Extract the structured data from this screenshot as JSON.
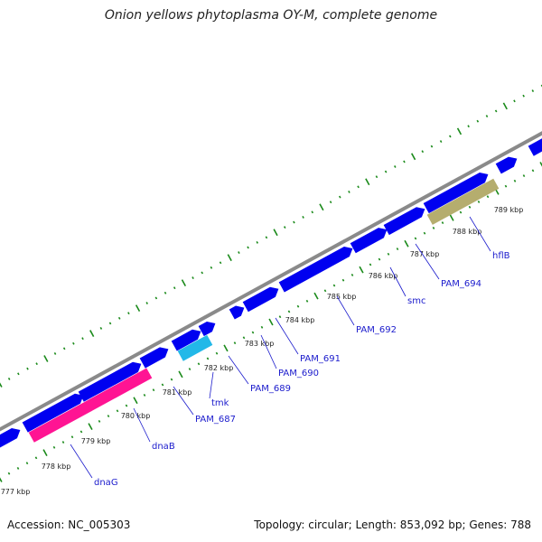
{
  "title": "Onion yellows phytoplasma OY-M, complete genome",
  "footer": {
    "accession": "Accession: NC_005303",
    "summary": "Topology: circular; Length: 853,092 bp; Genes: 788"
  },
  "colors": {
    "backbone": "#8a8a8a",
    "forward_gene": "#0000f0",
    "pink_gene": "#ff1493",
    "cyan_gene": "#22b8e8",
    "olive_gene": "#b5ad6e",
    "ticks": "#1a8a1a",
    "label": "#1a1acc"
  },
  "tick_labels": [
    "777 kbp",
    "778 kbp",
    "779 kbp",
    "780 kbp",
    "781 kbp",
    "782 kbp",
    "783 kbp",
    "784 kbp",
    "785 kbp",
    "786 kbp",
    "787 kbp",
    "788 kbp",
    "789 kbp"
  ],
  "gene_labels": [
    "dnaG",
    "dnaB",
    "PAM_687",
    "tmk",
    "PAM_689",
    "PAM_690",
    "PAM_691",
    "PAM_692",
    "smc",
    "PAM_694",
    "hflB"
  ]
}
